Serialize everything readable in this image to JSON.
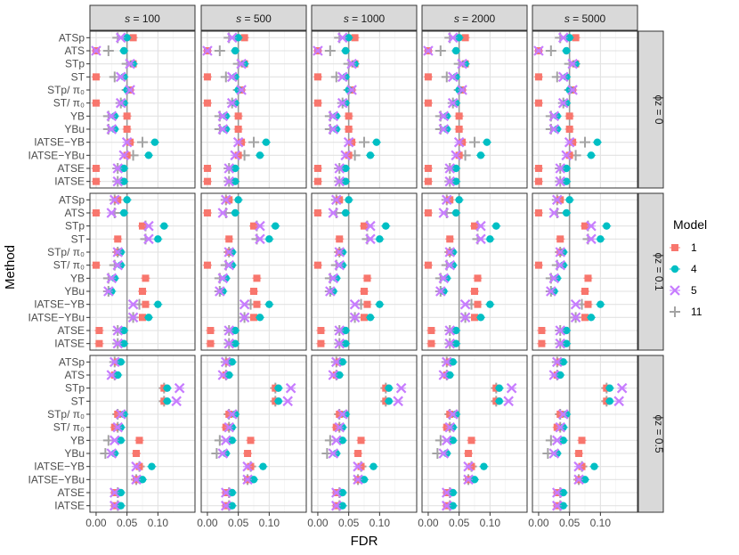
{
  "chart_data": {
    "type": "scatter",
    "title": "",
    "xlabel": "FDR",
    "ylabel": "Method",
    "xlim": [
      -0.01,
      0.16
    ],
    "x_ticks": [
      0.0,
      0.05,
      0.1
    ],
    "x_tick_labels": [
      "0.00",
      "0.05",
      "0.10"
    ],
    "reference_line_x": 0.05,
    "columns": [
      "s = 100",
      "s = 500",
      "s = 1000",
      "s = 2000",
      "s = 5000"
    ],
    "column_prefix": "s",
    "column_values": [
      "100",
      "500",
      "1000",
      "2000",
      "5000"
    ],
    "rows": [
      "ϕz = 0",
      "ϕz = 0.1",
      "ϕz = 0.5"
    ],
    "methods": [
      "ATSp",
      "ATS",
      "STp",
      "ST",
      "STp/ π₀",
      "ST/ π₀",
      "YB",
      "YBu",
      "IATSE−YB",
      "IATSE−YBu",
      "ATSE",
      "IATSE"
    ],
    "legend": {
      "title": "Model",
      "position": "right",
      "entries": [
        {
          "name": "1",
          "color": "#F8766D",
          "shape": "square"
        },
        {
          "name": "4",
          "color": "#00BFC4",
          "shape": "circle"
        },
        {
          "name": "5",
          "color": "#C77CFF",
          "shape": "x"
        },
        {
          "name": "11",
          "color": "#A3A3A3",
          "shape": "plus"
        }
      ]
    },
    "series": [
      {
        "name": "1",
        "values_by_row": [
          [
            0.06,
            0.0,
            0.06,
            0.0,
            0.055,
            0.0,
            0.05,
            0.05,
            0.055,
            0.05,
            0.0,
            0.0
          ],
          [
            0.035,
            0.0,
            0.075,
            0.035,
            0.035,
            0.0,
            0.08,
            0.075,
            0.08,
            0.075,
            0.005,
            0.005
          ],
          [
            0.035,
            0.03,
            0.11,
            0.11,
            0.035,
            0.03,
            0.07,
            0.065,
            0.07,
            0.065,
            0.03,
            0.03
          ]
        ]
      },
      {
        "name": "4",
        "values_by_row": [
          [
            0.05,
            0.045,
            0.06,
            0.045,
            0.05,
            0.045,
            0.03,
            0.03,
            0.095,
            0.085,
            0.045,
            0.045
          ],
          [
            0.05,
            0.045,
            0.11,
            0.1,
            0.04,
            0.04,
            0.03,
            0.025,
            0.1,
            0.085,
            0.045,
            0.045
          ],
          [
            0.04,
            0.035,
            0.115,
            0.115,
            0.045,
            0.04,
            0.04,
            0.03,
            0.09,
            0.075,
            0.04,
            0.04
          ]
        ]
      },
      {
        "name": "5",
        "values_by_row": [
          [
            0.04,
            0.0,
            0.055,
            0.04,
            0.055,
            0.04,
            0.025,
            0.025,
            0.05,
            0.045,
            0.035,
            0.035
          ],
          [
            0.03,
            0.025,
            0.085,
            0.085,
            0.035,
            0.035,
            0.025,
            0.02,
            0.06,
            0.06,
            0.035,
            0.035
          ],
          [
            0.03,
            0.025,
            0.135,
            0.13,
            0.04,
            0.035,
            0.03,
            0.025,
            0.065,
            0.065,
            0.03,
            0.03
          ]
        ]
      },
      {
        "name": "11",
        "values_by_row": [
          [
            0.035,
            0.02,
            0.05,
            0.03,
            0.05,
            0.04,
            0.02,
            0.02,
            0.075,
            0.06,
            0.035,
            0.035
          ],
          [
            0.03,
            0.03,
            0.08,
            0.08,
            0.035,
            0.03,
            0.02,
            0.02,
            0.07,
            0.06,
            0.035,
            0.035
          ],
          [
            0.03,
            0.03,
            0.11,
            0.11,
            0.035,
            0.035,
            0.02,
            0.015,
            0.07,
            0.065,
            0.035,
            0.035
          ]
        ]
      }
    ]
  }
}
